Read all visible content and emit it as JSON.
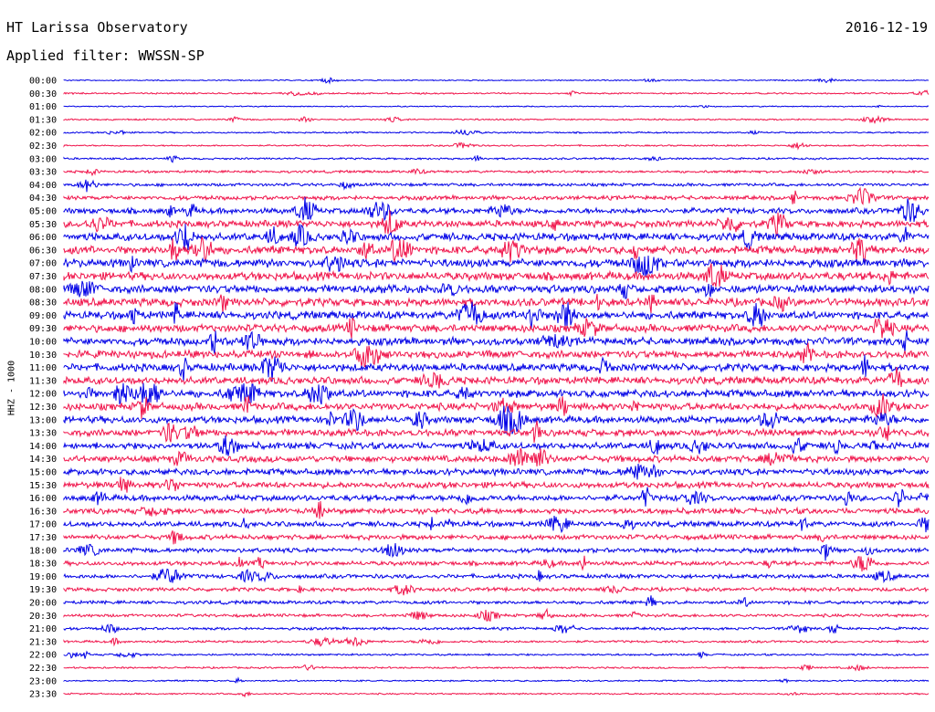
{
  "header": {
    "station": "HT Larissa Observatory",
    "date": "2016-12-19",
    "filter": "Applied filter: WWSSN-SP"
  },
  "chart_data": {
    "type": "line",
    "title": "HT Larissa Observatory",
    "ylabel": "HHZ - 1000",
    "colors": [
      "#0000e6",
      "#f0144b"
    ],
    "time_labels": [
      "00:00",
      "00:30",
      "01:00",
      "01:30",
      "02:00",
      "02:30",
      "03:00",
      "03:30",
      "04:00",
      "04:30",
      "05:00",
      "05:30",
      "06:00",
      "06:30",
      "07:00",
      "07:30",
      "08:00",
      "08:30",
      "09:00",
      "09:30",
      "10:00",
      "10:30",
      "11:00",
      "11:30",
      "12:00",
      "12:30",
      "13:00",
      "13:30",
      "14:00",
      "14:30",
      "15:00",
      "15:30",
      "16:00",
      "16:30",
      "17:00",
      "17:30",
      "18:00",
      "18:30",
      "19:00",
      "19:30",
      "20:00",
      "20:30",
      "21:00",
      "21:30",
      "22:00",
      "22:30",
      "23:00",
      "23:30"
    ],
    "noise_level": [
      0.6,
      0.8,
      0.6,
      0.8,
      0.8,
      0.8,
      1.0,
      1.3,
      1.6,
      2.2,
      3.0,
      3.6,
      4.0,
      4.2,
      4.3,
      4.3,
      4.2,
      4.2,
      4.1,
      4.0,
      4.0,
      4.0,
      4.0,
      3.9,
      3.9,
      3.8,
      3.7,
      3.6,
      3.5,
      3.4,
      3.3,
      3.2,
      3.1,
      3.0,
      2.8,
      2.6,
      2.4,
      2.3,
      2.2,
      2.0,
      1.8,
      1.6,
      1.4,
      1.2,
      1.0,
      0.9,
      0.8,
      0.8
    ]
  }
}
